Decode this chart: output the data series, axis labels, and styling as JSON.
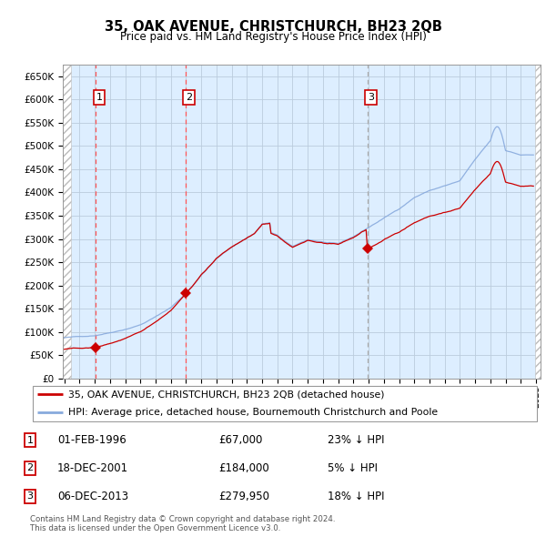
{
  "title": "35, OAK AVENUE, CHRISTCHURCH, BH23 2QB",
  "subtitle": "Price paid vs. HM Land Registry's House Price Index (HPI)",
  "ylabel_ticks": [
    "£0",
    "£50K",
    "£100K",
    "£150K",
    "£200K",
    "£250K",
    "£300K",
    "£350K",
    "£400K",
    "£450K",
    "£500K",
    "£550K",
    "£600K",
    "£650K"
  ],
  "ytick_values": [
    0,
    50000,
    100000,
    150000,
    200000,
    250000,
    300000,
    350000,
    400000,
    450000,
    500000,
    550000,
    600000,
    650000
  ],
  "xmin": 1993.9,
  "xmax": 2025.3,
  "ymin": 0,
  "ymax": 675000,
  "sale_points": [
    {
      "year": 1996.08,
      "price": 67000,
      "label": "1"
    },
    {
      "year": 2001.96,
      "price": 184000,
      "label": "2"
    },
    {
      "year": 2013.92,
      "price": 279950,
      "label": "3"
    }
  ],
  "vline_colors": [
    "#ff5555",
    "#ff5555",
    "#aaaaaa"
  ],
  "legend_entries": [
    "35, OAK AVENUE, CHRISTCHURCH, BH23 2QB (detached house)",
    "HPI: Average price, detached house, Bournemouth Christchurch and Poole"
  ],
  "table_rows": [
    {
      "num": "1",
      "date": "01-FEB-1996",
      "price": "£67,000",
      "note": "23% ↓ HPI"
    },
    {
      "num": "2",
      "date": "18-DEC-2001",
      "price": "£184,000",
      "note": "5% ↓ HPI"
    },
    {
      "num": "3",
      "date": "06-DEC-2013",
      "price": "£279,950",
      "note": "18% ↓ HPI"
    }
  ],
  "footer": "Contains HM Land Registry data © Crown copyright and database right 2024.\nThis data is licensed under the Open Government Licence v3.0.",
  "line_color_sale": "#cc0000",
  "line_color_hpi": "#88aadd",
  "dot_color": "#cc0000",
  "bg_color": "#ddeeff",
  "grid_color": "#bbccdd",
  "box_color": "#cc0000"
}
